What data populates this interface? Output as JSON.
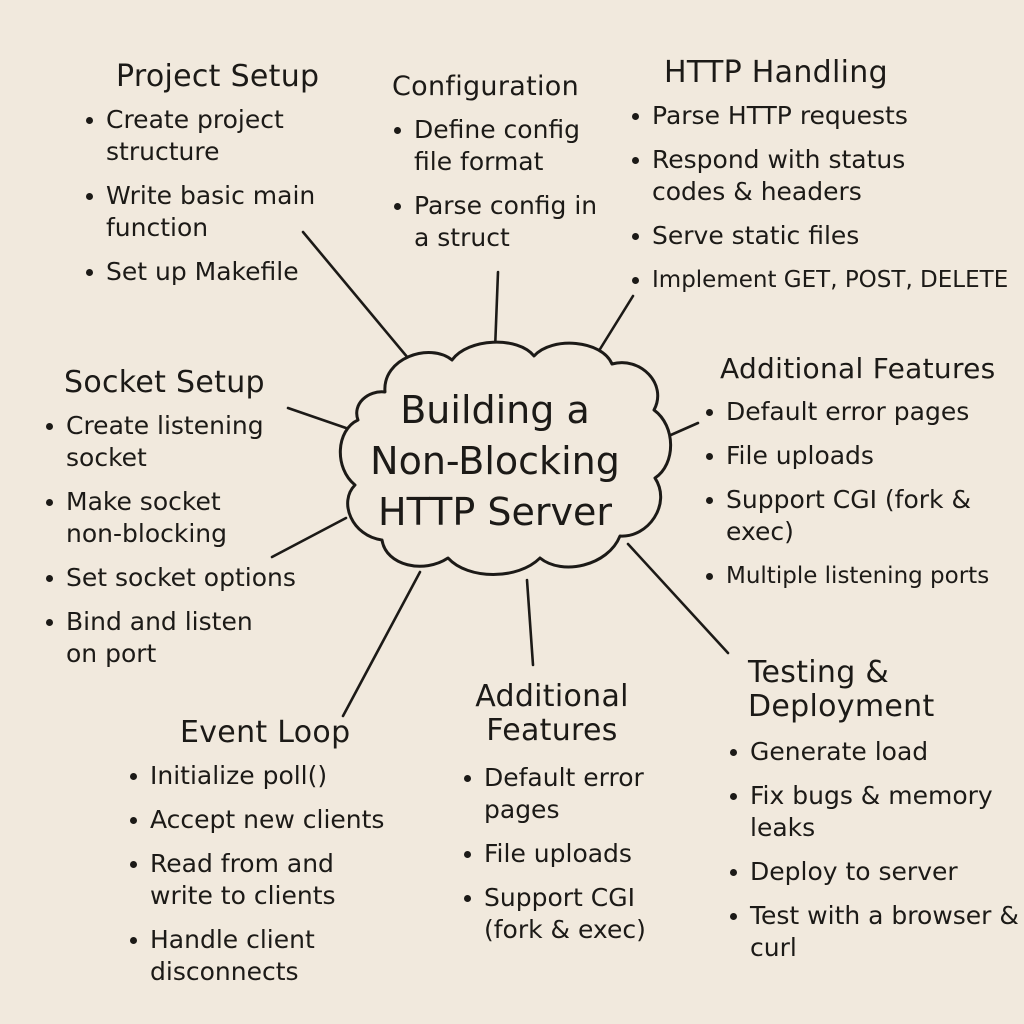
{
  "center": {
    "lines": [
      "Building a",
      "Non-Blocking",
      "HTTP Server"
    ]
  },
  "sections": {
    "project_setup": {
      "title": "Project Setup",
      "items": [
        "Create project structure",
        "Write basic main function",
        "Set up Makefile"
      ]
    },
    "configuration": {
      "title": "Configuration",
      "items": [
        "Define config file format",
        "Parse config in a struct"
      ]
    },
    "http_handling": {
      "title": "HTTP Handling",
      "items": [
        "Parse HTTP requests",
        "Respond with status codes & headers",
        "Serve static files",
        "Implement GET, POST, DELETE"
      ]
    },
    "socket_setup": {
      "title": "Socket Setup",
      "items": [
        "Create listening socket",
        "Make socket non-blocking",
        "Set socket options",
        "Bind and listen on port"
      ]
    },
    "additional_features_right": {
      "title": "Additional Features",
      "items": [
        "Default error pages",
        "File uploads",
        "Support CGI (fork & exec)",
        "Multiple listening ports"
      ]
    },
    "event_loop": {
      "title": "Event Loop",
      "items": [
        "Initialize poll()",
        "Accept new clients",
        "Read from and write to clients",
        "Handle client disconnects"
      ]
    },
    "additional_features_bottom": {
      "title": "Additional Features",
      "items": [
        "Default error pages",
        "File uploads",
        "Support CGI (fork & exec)"
      ]
    },
    "testing_deployment": {
      "title": "Testing & Deployment",
      "items": [
        "Generate load",
        "Fix bugs & memory leaks",
        "Deploy to server",
        "Test with a browser & curl"
      ]
    }
  }
}
